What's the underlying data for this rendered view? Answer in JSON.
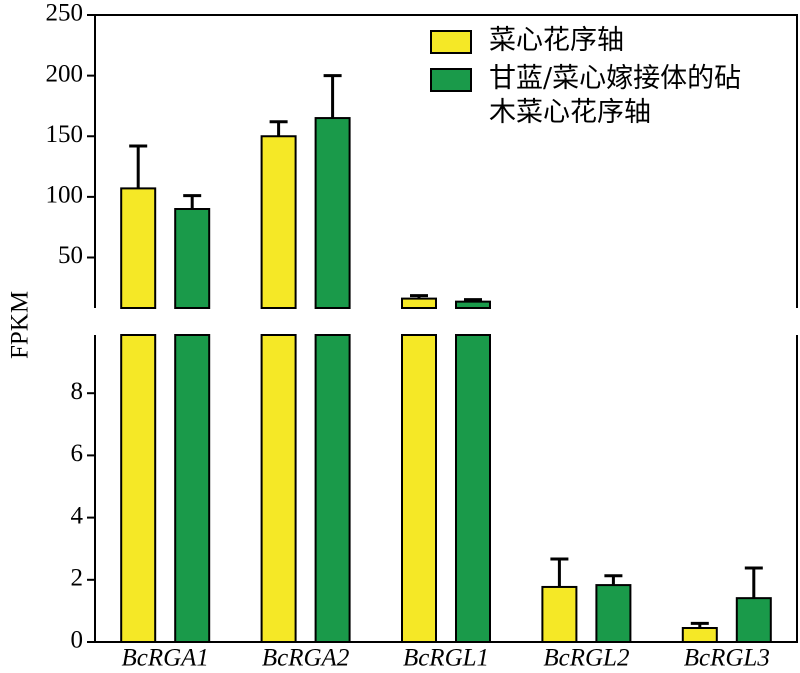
{
  "chart_data": {
    "type": "bar",
    "y_label": "FPKM",
    "categories": [
      "BcRGA1",
      "BcRGA2",
      "BcRGL1",
      "BcRGL2",
      "BcRGL3"
    ],
    "series": [
      {
        "name": "菜心花序轴",
        "color": "#f5e826",
        "values": [
          107,
          150,
          16.1,
          1.77,
          0.45
        ],
        "errors": [
          35,
          12,
          2.5,
          0.9,
          0.15
        ]
      },
      {
        "name": "甘蓝/菜心嫁接体的砧木菜心花序轴",
        "color": "#1a9a4a",
        "values": [
          90,
          165,
          13.6,
          1.83,
          1.41
        ],
        "errors": [
          11,
          35,
          1.7,
          0.3,
          0.97
        ]
      }
    ],
    "broken_axis": {
      "upper": {
        "ylim": [
          10,
          250
        ],
        "yticks": [
          50,
          100,
          150,
          200,
          250
        ]
      },
      "lower": {
        "ylim": [
          0,
          10
        ],
        "yticks": [
          0,
          2,
          4,
          6,
          8
        ]
      }
    },
    "legend": "upper right"
  }
}
